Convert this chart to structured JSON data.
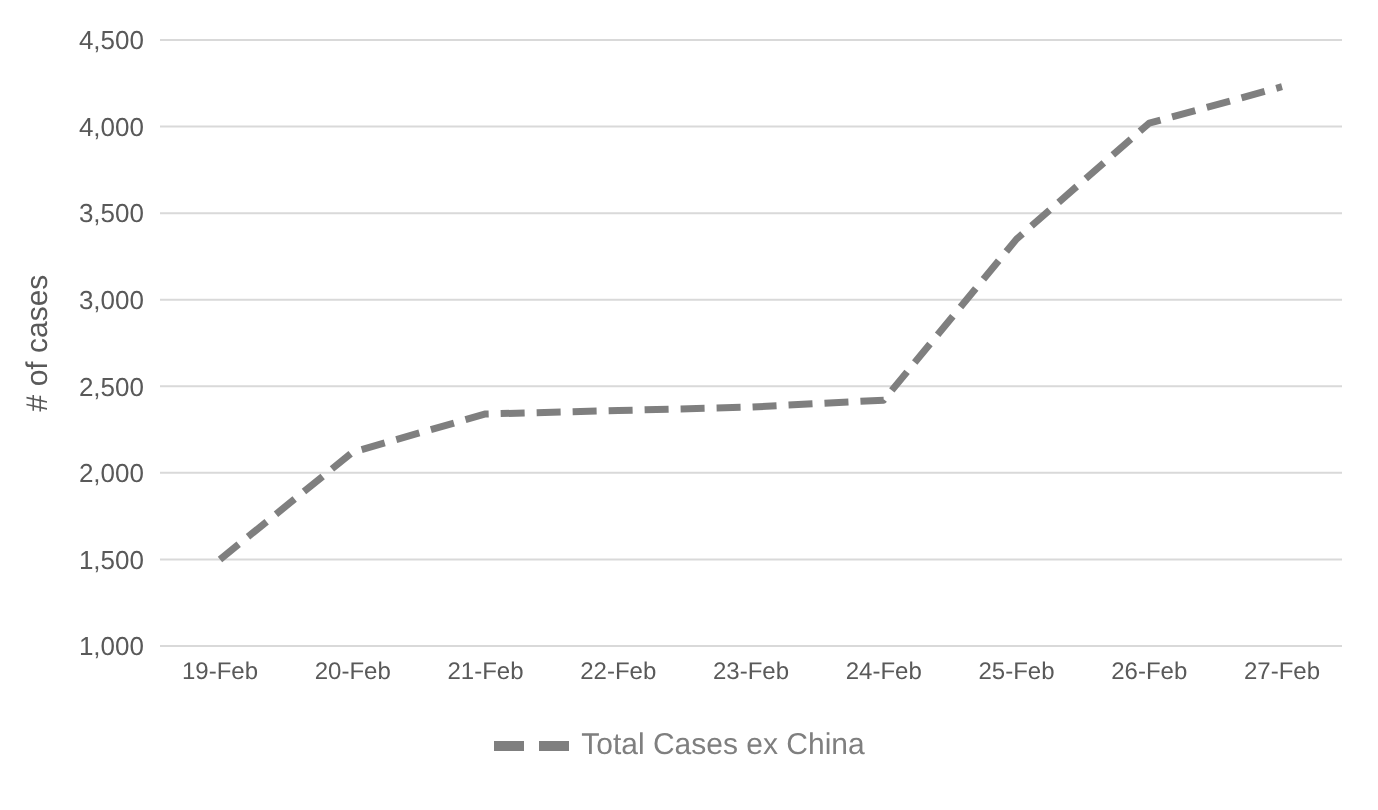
{
  "chart_data": {
    "type": "line",
    "ylabel": "# of cases",
    "categories": [
      "19-Feb",
      "20-Feb",
      "21-Feb",
      "22-Feb",
      "23-Feb",
      "24-Feb",
      "25-Feb",
      "26-Feb",
      "27-Feb"
    ],
    "series": [
      {
        "name": "Total Cases ex China",
        "color": "#7f7f7f",
        "values": [
          1500,
          2120,
          2340,
          2360,
          2380,
          2420,
          3350,
          4020,
          4230
        ]
      }
    ],
    "ylim": [
      1000,
      4500
    ],
    "yticks": [
      {
        "value": 1000,
        "label": "1,000"
      },
      {
        "value": 1500,
        "label": "1,500"
      },
      {
        "value": 2000,
        "label": "2,000"
      },
      {
        "value": 2500,
        "label": "2,500"
      },
      {
        "value": 3000,
        "label": "3,000"
      },
      {
        "value": 3500,
        "label": "3,500"
      },
      {
        "value": 4000,
        "label": "4,000"
      },
      {
        "value": 4500,
        "label": "4,500"
      }
    ],
    "grid": "y",
    "legend": "bottom",
    "line_style": "dashed",
    "marker": "none"
  }
}
